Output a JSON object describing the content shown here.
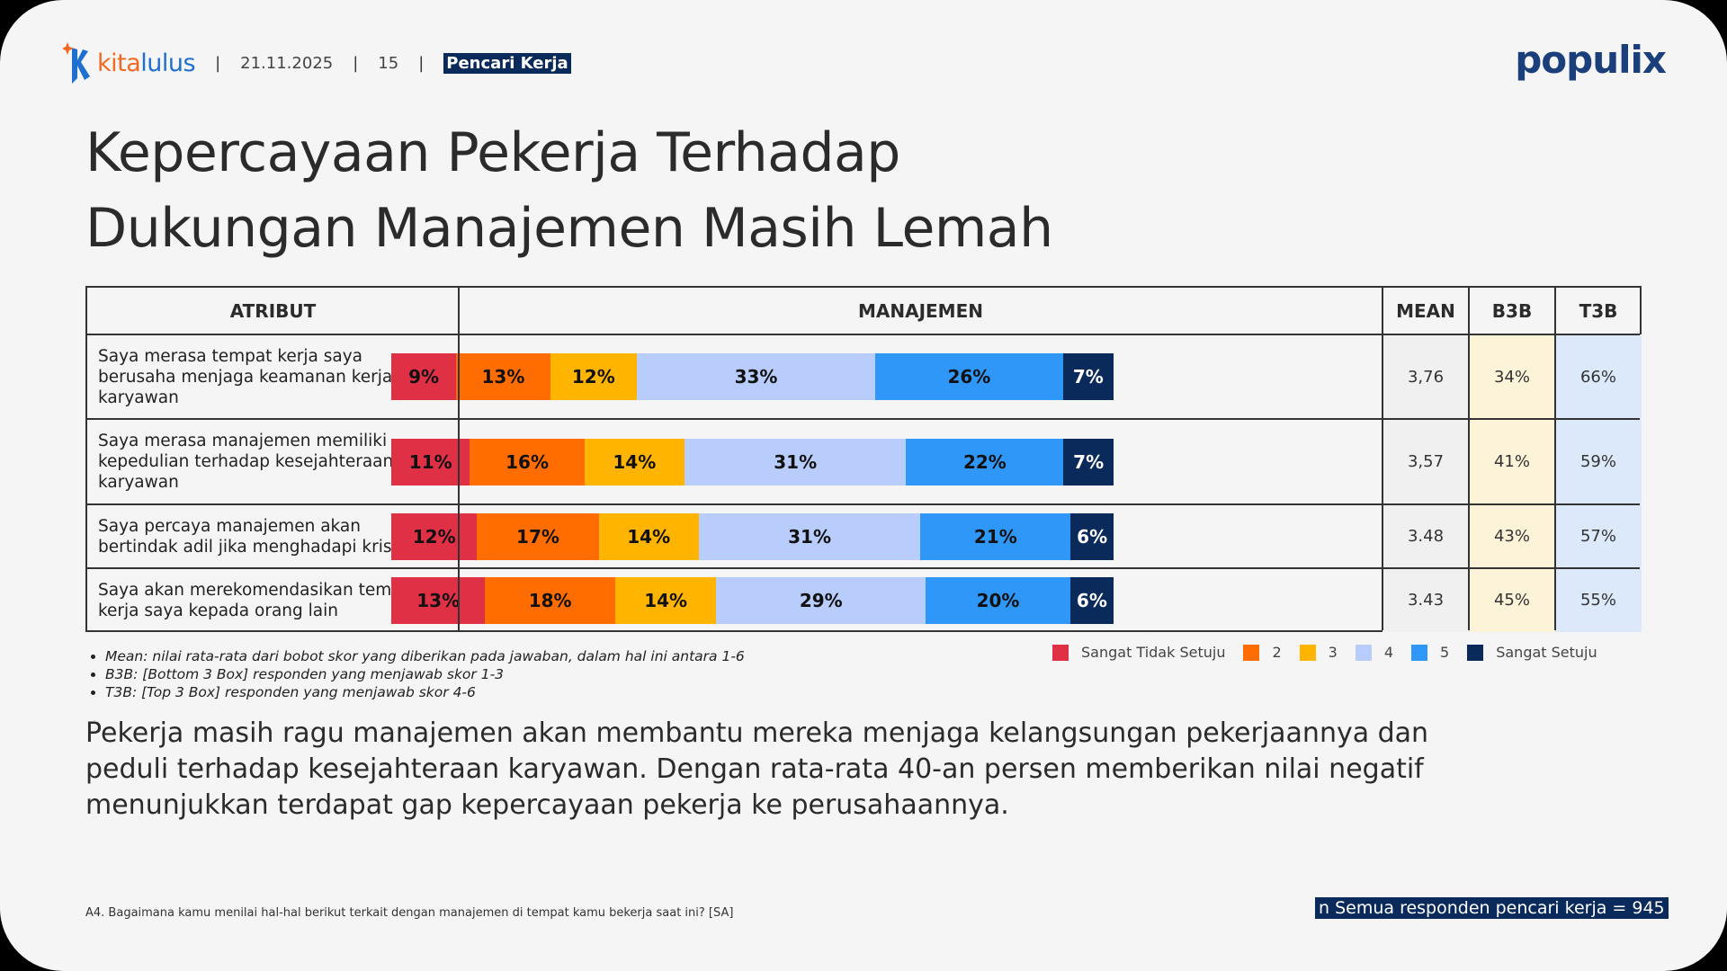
{
  "header": {
    "brand_left_a": "kita",
    "brand_left_b": "lulus",
    "date": "21.11.2025",
    "page": "15",
    "tag": "Pencari Kerja",
    "brand_right": "populix"
  },
  "title_line1": "Kepercayaan Pekerja Terhadap",
  "title_line2": "Dukungan Manajemen Masih Lemah",
  "table_headers": {
    "attr": "ATRIBUT",
    "mgmt": "MANAJEMEN",
    "mean": "MEAN",
    "b3b": "B3B",
    "t3b": "T3B"
  },
  "colors": {
    "s1": "#e03046",
    "s2": "#ff6d00",
    "s3": "#ffb400",
    "s4": "#b8cdfb",
    "s5": "#2e97f8",
    "s6": "#0b2a5c",
    "b3b_bg": "#fdf3d9",
    "t3b_bg": "#dbe9fb",
    "mean_bg": "#f0f0f0"
  },
  "chart_data": {
    "type": "stacked-bar-horizontal",
    "title": "MANAJEMEN",
    "series_names": [
      "Sangat Tidak Setuju",
      "2",
      "3",
      "4",
      "5",
      "Sangat Setuju"
    ],
    "rows": [
      {
        "attr": "Saya merasa tempat kerja saya berusaha menjaga keamanan kerja karyawan",
        "values": [
          9,
          13,
          12,
          33,
          26,
          7
        ],
        "labels": [
          "9%",
          "13%",
          "12%",
          "33%",
          "26%",
          "7%"
        ],
        "mean": "3,76",
        "b3b": "34%",
        "t3b": "66%"
      },
      {
        "attr": "Saya merasa manajemen memiliki kepedulian terhadap kesejahteraan karyawan",
        "values": [
          11,
          16,
          14,
          31,
          22,
          7
        ],
        "labels": [
          "11%",
          "16%",
          "14%",
          "31%",
          "22%",
          "7%"
        ],
        "mean": "3,57",
        "b3b": "41%",
        "t3b": "59%"
      },
      {
        "attr": "Saya percaya manajemen akan bertindak adil jika menghadapi krisis",
        "values": [
          12,
          17,
          14,
          31,
          21,
          6
        ],
        "labels": [
          "12%",
          "17%",
          "14%",
          "31%",
          "21%",
          "6%"
        ],
        "mean": "3.48",
        "b3b": "43%",
        "t3b": "57%"
      },
      {
        "attr": "Saya akan merekomendasikan tempat kerja saya kepada orang lain",
        "values": [
          13,
          18,
          14,
          29,
          20,
          6
        ],
        "labels": [
          "13%",
          "18%",
          "14%",
          "29%",
          "20%",
          "6%"
        ],
        "mean": "3.43",
        "b3b": "45%",
        "t3b": "55%"
      }
    ]
  },
  "notes": [
    "Mean: nilai rata-rata dari bobot skor yang diberikan pada jawaban, dalam hal ini antara 1-6",
    "B3B: [Bottom 3 Box] responden yang menjawab skor 1-3",
    "T3B: [Top 3 Box] responden yang menjawab skor 4-6"
  ],
  "insight": "Pekerja masih ragu manajemen akan membantu mereka menjaga kelangsungan pekerjaannya dan peduli terhadap kesejahteraan karyawan. Dengan rata-rata 40-an persen memberikan nilai negatif menunjukkan terdapat gap kepercayaan pekerja ke perusahaannya.",
  "footnote": "A4. Bagaimana kamu menilai hal-hal berikut terkait dengan manajemen di tempat kamu bekerja saat ini? [SA]",
  "sample": "n Semua responden pencari kerja = 945"
}
